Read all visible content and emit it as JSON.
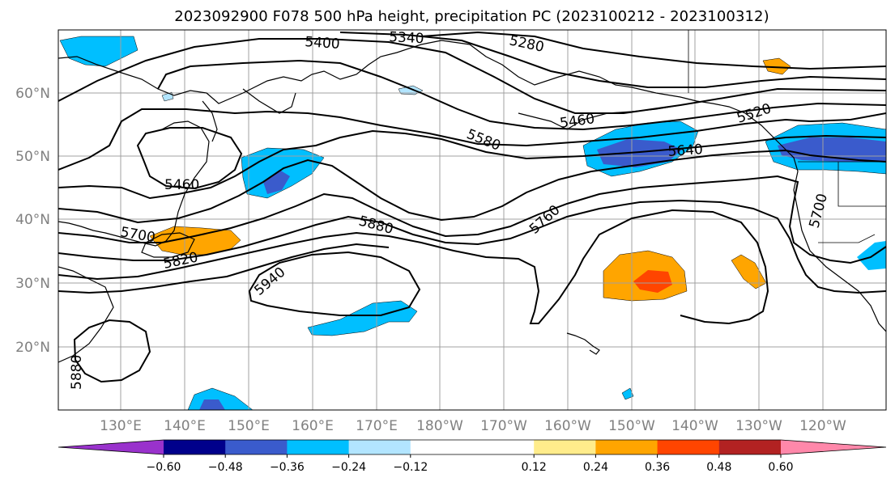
{
  "title": "2023092900 F078 500 hPa height, precipitation PC (2023100212 - 2023100312)",
  "lat_labels": [
    "60°N",
    "50°N",
    "40°N",
    "30°N",
    "20°N"
  ],
  "lon_labels": [
    "130°E",
    "140°E",
    "150°E",
    "160°E",
    "170°E",
    "180°W",
    "170°W",
    "160°W",
    "150°W",
    "140°W",
    "130°W",
    "120°W"
  ],
  "contour_labels": [
    "5400",
    "5340",
    "5280",
    "5460",
    "5580",
    "5460",
    "5640",
    "5520",
    "5700",
    "5760",
    "5880",
    "5820",
    "5700",
    "5940",
    "5880"
  ],
  "colorbar": {
    "colors": [
      "#9932CC",
      "#00008B",
      "#3A5BCC",
      "#00BFFF",
      "#B2E5FF",
      "#FFFFFF",
      "#FFFFFF",
      "#FFEC8B",
      "#FFA500",
      "#FF4500",
      "#B22222",
      "#FF88AA"
    ],
    "ticks": [
      "−0.60",
      "−0.48",
      "−0.36",
      "−0.24",
      "−0.12",
      "0.12",
      "0.24",
      "0.36",
      "0.48",
      "0.60"
    ]
  }
}
